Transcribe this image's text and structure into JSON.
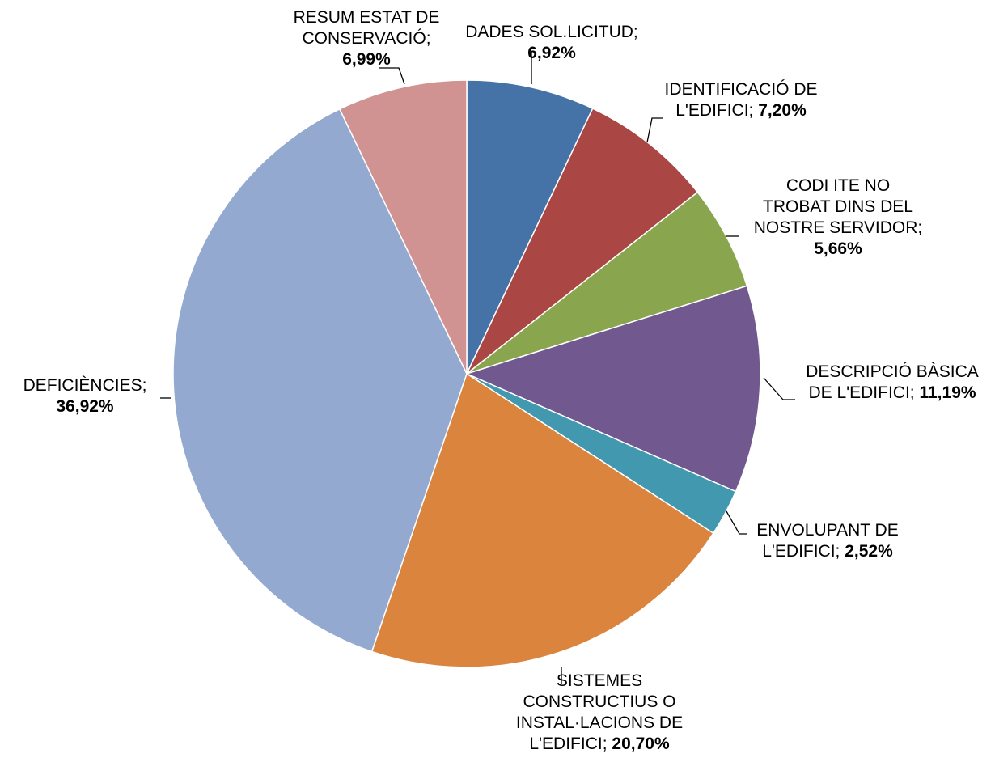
{
  "chart_data": {
    "type": "pie",
    "title": "",
    "slices": [
      {
        "lines": [
          "DADES SOL.LICITUD;"
        ],
        "value_text": "6,92%",
        "value": 6.92,
        "color": "#4572A7"
      },
      {
        "lines": [
          "IDENTIFICACIÓ DE",
          "L'EDIFICI;"
        ],
        "value_text": "7,20%",
        "value": 7.2,
        "color": "#AA4643"
      },
      {
        "lines": [
          "CODI ITE NO",
          "TROBAT DINS DEL",
          "NOSTRE SERVIDOR;"
        ],
        "value_text": "5,66%",
        "value": 5.66,
        "color": "#89A54E"
      },
      {
        "lines": [
          "DESCRIPCIÓ BÀSICA",
          "DE L'EDIFICI;"
        ],
        "value_text": "11,19%",
        "value": 11.19,
        "color": "#71588F"
      },
      {
        "lines": [
          "ENVOLUPANT DE",
          "L'EDIFICI;"
        ],
        "value_text": "2,52%",
        "value": 2.52,
        "color": "#4198AF"
      },
      {
        "lines": [
          "SISTEMES",
          "CONSTRUCTIUS O",
          "INSTAL·LACIONS DE",
          "L'EDIFICI;"
        ],
        "value_text": "20,70%",
        "value": 20.7,
        "color": "#DB843D"
      },
      {
        "lines": [
          "DEFICIÈNCIES;"
        ],
        "value_text": "36,92%",
        "value": 36.92,
        "color": "#93A9CF"
      },
      {
        "lines": [
          "RESUM ESTAT DE",
          "CONSERVACIÓ;"
        ],
        "value_text": "6,99%",
        "value": 6.99,
        "color": "#D19392"
      }
    ]
  }
}
